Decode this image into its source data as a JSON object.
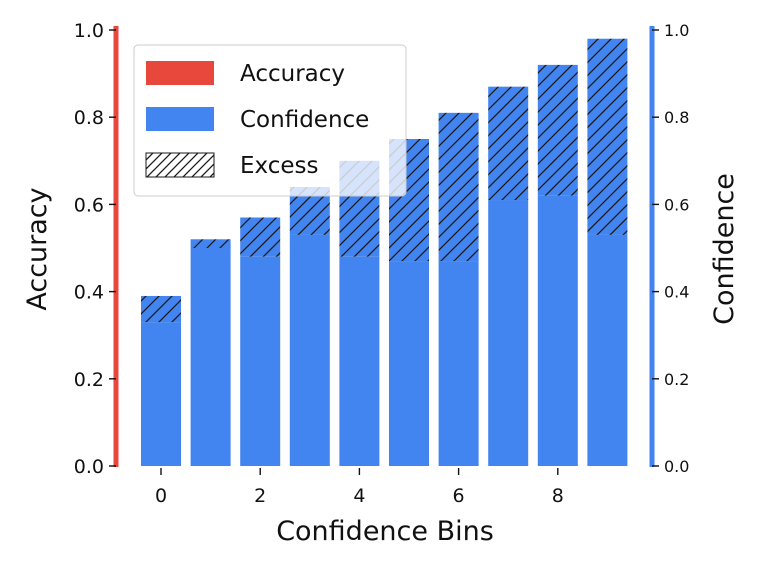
{
  "chart_data": {
    "type": "bar",
    "xlabel": "Confidence Bins",
    "ylabel_left": "Accuracy",
    "ylabel_right": "Confidence",
    "ylim": [
      0,
      1
    ],
    "yticks": [
      "0.0",
      "0.2",
      "0.4",
      "0.6",
      "0.8",
      "1.0"
    ],
    "xticks": [
      "0",
      "2",
      "4",
      "6",
      "8"
    ],
    "xtick_positions": [
      0,
      2,
      4,
      6,
      8
    ],
    "x": [
      0,
      1,
      2,
      3,
      4,
      5,
      6,
      7,
      8,
      9
    ],
    "series": [
      {
        "name": "Accuracy",
        "values": [
          0.33,
          0.5,
          0.48,
          0.53,
          0.48,
          0.47,
          0.47,
          0.61,
          0.62,
          0.53
        ]
      },
      {
        "name": "Confidence",
        "values": [
          0.39,
          0.52,
          0.57,
          0.64,
          0.7,
          0.75,
          0.81,
          0.87,
          0.92,
          0.98
        ]
      },
      {
        "name": "Excess"
      }
    ],
    "colors": {
      "accuracy": "#e8473c",
      "confidence": "#4285f0",
      "hatch": "#1a1a1a"
    },
    "legend_position": "top-left",
    "grid": false
  }
}
